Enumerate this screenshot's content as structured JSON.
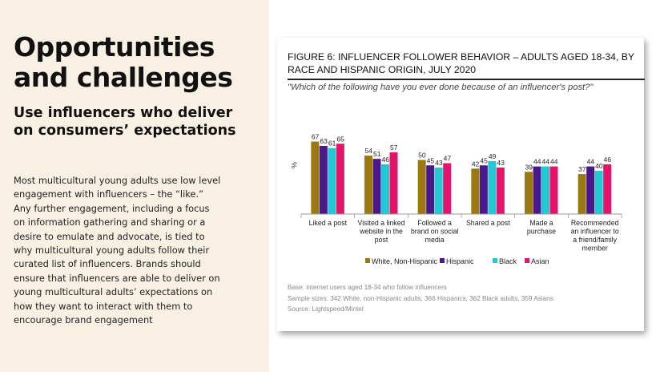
{
  "left": {
    "title": "Opportunities and challenges",
    "subtitle": "Use influencers who deliver on consumers’ expectations",
    "body": "Most multicultural young adults use low level engagement with influencers – the “like.” Any further engagement, including a focus on information gathering and sharing or a desire to emulate and advocate, is tied to why multicultural young adults follow their curated list of influencers. Brands should ensure that influencers are able to deliver on young multicultural adults’ expectations on how they want to interact with them to encourage brand engagement"
  },
  "figure": {
    "title": "FIGURE 6: INFLUENCER FOLLOWER BEHAVIOR – ADULTS AGED 18-34, BY RACE AND HISPANIC ORIGIN, JULY 2020",
    "question": "\"Which of the following have you ever done because of an influencer's post?\"",
    "base": "Base: internet users aged 18-34 who follow influencers",
    "sample": "Sample sizes: 342 White, non-Hispanic adults, 366 Hispanics, 362 Black adults, 359 Asians",
    "source": "Source: Lightspeed/Mintel"
  },
  "chart_data": {
    "type": "bar",
    "title": "FIGURE 6: INFLUENCER FOLLOWER BEHAVIOR – ADULTS AGED 18-34, BY RACE AND HISPANIC ORIGIN, JULY 2020",
    "ylabel": "%",
    "ylim": [
      0,
      70
    ],
    "grid": false,
    "legend": "bottom",
    "categories": [
      [
        "Liked a post"
      ],
      [
        "Visited a linked",
        "website in the",
        "post"
      ],
      [
        "Followed a",
        "brand on social",
        "media"
      ],
      [
        "Shared a post"
      ],
      [
        "Made a",
        "purchase"
      ],
      [
        "Recommended",
        "an influencer to",
        "a friend/family",
        "member"
      ]
    ],
    "series": [
      {
        "name": "White, Non-Hispanic",
        "color": "#9a7a10",
        "values": [
          67,
          54,
          50,
          42,
          39,
          37
        ]
      },
      {
        "name": "Hispanic",
        "color": "#4b1889",
        "values": [
          63,
          51,
          45,
          45,
          44,
          44
        ]
      },
      {
        "name": "Black",
        "color": "#22c9d2",
        "values": [
          61,
          46,
          43,
          49,
          44,
          40
        ]
      },
      {
        "name": "Asian",
        "color": "#e4146a",
        "values": [
          65,
          57,
          47,
          43,
          44,
          46
        ]
      }
    ]
  }
}
